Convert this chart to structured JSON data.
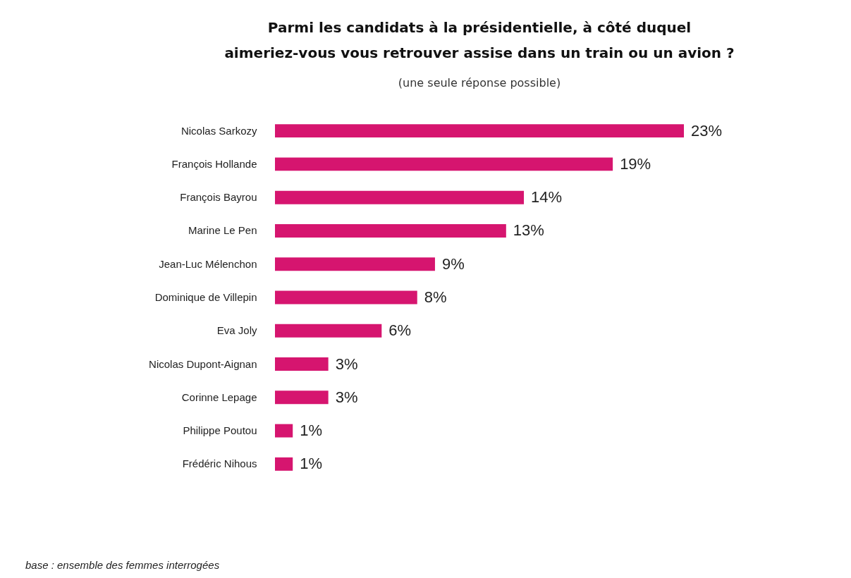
{
  "chart_data": {
    "type": "bar",
    "orientation": "horizontal",
    "title": "Parmi les candidats à la présidentielle, à côté duquel aimeriez-vous vous retrouver assise dans un train ou un avion ?",
    "subtitle": "(une seule réponse possible)",
    "categories": [
      "Nicolas Sarkozy",
      "François Hollande",
      "François Bayrou",
      "Marine Le Pen",
      "Jean-Luc Mélenchon",
      "Dominique de Villepin",
      "Eva Joly",
      "Nicolas Dupont-Aignan",
      "Corinne Lepage",
      "Philippe Poutou",
      "Frédéric Nihous"
    ],
    "values": [
      23,
      19,
      14,
      13,
      9,
      8,
      6,
      3,
      3,
      1,
      1
    ],
    "value_labels": [
      "23%",
      "19%",
      "14%",
      "13%",
      "9%",
      "8%",
      "6%",
      "3%",
      "3%",
      "1%",
      "1%"
    ],
    "color": "#d6156f",
    "annotations": [
      "base : ensemble des femmes interrogées"
    ]
  }
}
